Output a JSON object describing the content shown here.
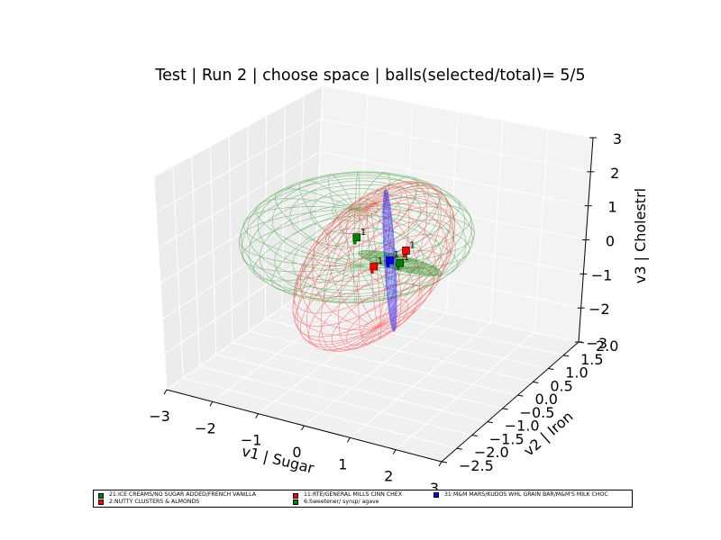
{
  "chart_data": {
    "type": "scatter",
    "dimensions": "3d",
    "title": "Test | Run 2 | choose space | balls(selected/total)= 5/5",
    "xlabel": "v1 | Sugar",
    "ylabel": "v2 | Iron",
    "zlabel": "v3 | Cholestrl",
    "xlim": [
      -3,
      3
    ],
    "ylim": [
      -2.5,
      2.0
    ],
    "zlim": [
      -3,
      3
    ],
    "x_ticks": [
      "−3",
      "−2",
      "−1",
      "0",
      "1",
      "2",
      "3"
    ],
    "y_ticks": [
      "−2.5",
      "−2.0",
      "−1.5",
      "−1.0",
      "−0.5",
      "0.0",
      "0.5",
      "1.0",
      "1.5",
      "2.0"
    ],
    "z_ticks": [
      "−3",
      "−2",
      "−1",
      "0",
      "1",
      "2",
      "3"
    ],
    "grid": true,
    "legend_position": "bottom",
    "series": [
      {
        "name": "21:ICE CREAMS/NO SUGAR ADDED/FRENCH VANILLA",
        "color": "#008000",
        "marker": "square",
        "center": [
          -0.15,
          -0.3,
          0.6
        ],
        "point_label": "1",
        "ellipsoid_radii": [
          2.2,
          2.0,
          0.8
        ]
      },
      {
        "name": "2:NUTTY CLUSTERS & ALMONDS",
        "color": "#ff0000",
        "marker": "square",
        "center": [
          0.05,
          -0.1,
          -0.3
        ],
        "point_label": "1",
        "ellipsoid_radii": [
          1.0,
          2.2,
          1.7
        ]
      },
      {
        "name": "11:RTE/GENERAL MILLS CINN CHEX",
        "color": "#ff0000",
        "marker": "square",
        "center": [
          0.5,
          0.3,
          0.0
        ],
        "point_label": "1",
        "ellipsoid_radii": [
          0.05,
          0.05,
          0.05
        ]
      },
      {
        "name": "6:Sweetener/ syrup/ agave",
        "color": "#008000",
        "marker": "square",
        "center": [
          0.35,
          0.3,
          -0.4
        ],
        "point_label": "1",
        "ellipsoid_radii": [
          0.9,
          0.2,
          0.1
        ]
      },
      {
        "name": "31:M&M MARS/KUDOS WHL GRAIN BAR/M&M'S MILK CHOC",
        "color": "#0000ff",
        "marker": "square",
        "center": [
          0.2,
          0.2,
          -0.3
        ],
        "point_label": "1",
        "ellipsoid_radii": [
          0.1,
          0.1,
          2.0
        ]
      }
    ],
    "legend": [
      {
        "name": "21:ICE CREAMS/NO SUGAR ADDED/FRENCH VANILLA",
        "color": "#008000"
      },
      {
        "name": "2:NUTTY CLUSTERS & ALMONDS",
        "color": "#ff0000"
      },
      {
        "name": "11:RTE/GENERAL MILLS CINN CHEX",
        "color": "#ff0000"
      },
      {
        "name": "6:Sweetener/ syrup/ agave",
        "color": "#008000"
      },
      {
        "name": "31:M&M MARS/KUDOS WHL GRAIN BAR/M&M'S MILK CHOC",
        "color": "#0000ff"
      }
    ]
  }
}
